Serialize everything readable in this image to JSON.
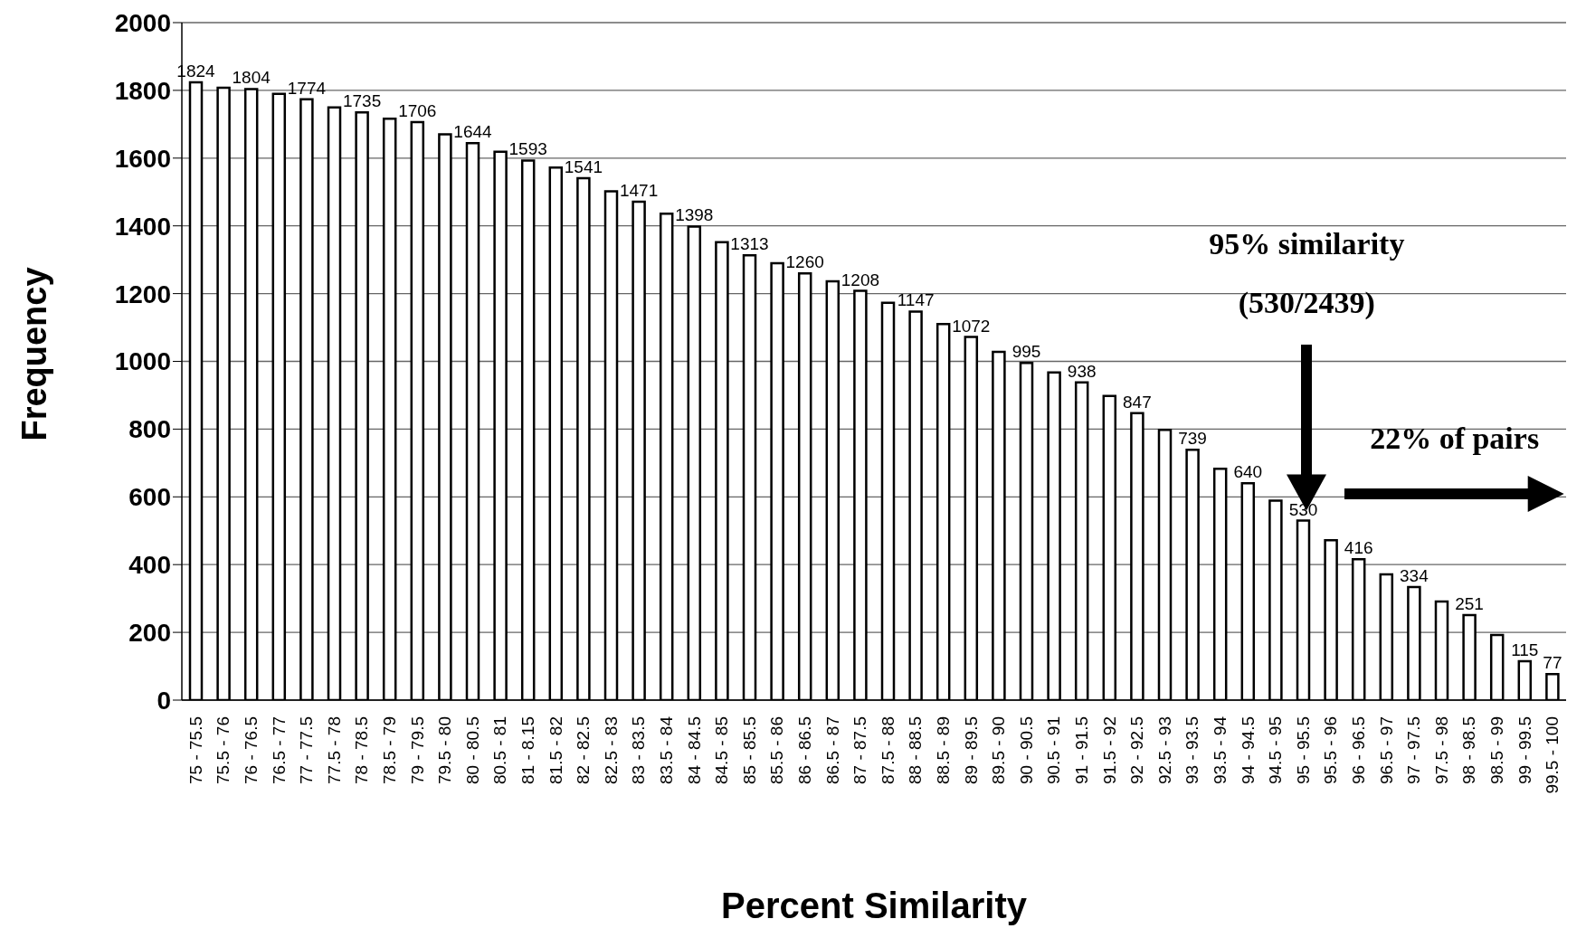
{
  "chart_data": {
    "type": "bar",
    "xlabel": "Percent Similarity",
    "ylabel": "Frequency",
    "categories": [
      "75 - 75.5",
      "75.5 - 76",
      "76 - 76.5",
      "76.5 - 77",
      "77 - 77.5",
      "77.5 - 78",
      "78 - 78.5",
      "78.5 - 79",
      "79 - 79.5",
      "79.5 - 80",
      "80 - 80.5",
      "80.5 - 81",
      "81 - 8.15",
      "81.5 - 82",
      "82 - 82.5",
      "82.5 - 83",
      "83 - 83.5",
      "83.5 - 84",
      "84 - 84.5",
      "84.5 - 85",
      "85 - 85.5",
      "85.5 - 86",
      "86 - 86.5",
      "86.5 - 87",
      "87 - 87.5",
      "87.5 - 88",
      "88 - 88.5",
      "88.5 - 89",
      "89 - 89.5",
      "89.5 - 90",
      "90 - 90.5",
      "90.5 - 91",
      "91 - 91.5",
      "91.5 - 92",
      "92 - 92.5",
      "92.5 - 93",
      "93 - 93.5",
      "93.5 - 94",
      "94 - 94.5",
      "94.5 - 95",
      "95 - 95.5",
      "95.5 - 96",
      "96 - 96.5",
      "96.5 - 97",
      "97 - 97.5",
      "97.5 - 98",
      "98 - 98.5",
      "98.5 - 99",
      "99 - 99.5",
      "99.5 - 100"
    ],
    "values": [
      1824,
      1808,
      1804,
      1790,
      1774,
      1750,
      1735,
      1716,
      1706,
      1670,
      1644,
      1619,
      1593,
      1572,
      1541,
      1502,
      1471,
      1436,
      1398,
      1352,
      1313,
      1290,
      1260,
      1236,
      1208,
      1173,
      1147,
      1110,
      1072,
      1028,
      995,
      967,
      938,
      898,
      847,
      798,
      739,
      683,
      640,
      589,
      530,
      472,
      416,
      371,
      334,
      291,
      251,
      192,
      115,
      77
    ],
    "value_labels": [
      "1824",
      null,
      "1804",
      null,
      "1774",
      null,
      "1735",
      null,
      "1706",
      null,
      "1644",
      null,
      "1593",
      null,
      "1541",
      null,
      "1471",
      null,
      "1398",
      null,
      "1313",
      null,
      "1260",
      null,
      "1208",
      null,
      "1147",
      null,
      "1072",
      null,
      "995",
      null,
      "938",
      null,
      "847",
      null,
      "739",
      null,
      "640",
      null,
      "530",
      null,
      "416",
      null,
      "334",
      null,
      "251",
      null,
      "115",
      "77"
    ],
    "color": "#ffffff",
    "ylim": [
      0,
      2000
    ],
    "yticks": [
      0,
      200,
      400,
      600,
      800,
      1000,
      1200,
      1400,
      1600,
      1800,
      2000
    ],
    "grid": "y",
    "legend": false,
    "annotations": [
      "95% similarity",
      "(530/2439)",
      "22% of pairs"
    ]
  }
}
